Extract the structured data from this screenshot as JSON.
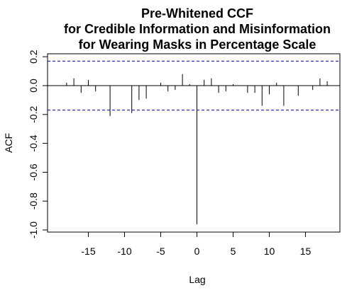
{
  "chart_data": {
    "type": "bar",
    "title_lines": [
      "Pre-Whitened CCF",
      "for Credible Information and Misinformation",
      "for Wearing Masks in Percentage Scale"
    ],
    "xlabel": "Lag",
    "ylabel": "ACF",
    "xlim": [
      -19,
      19
    ],
    "ylim": [
      -1.0,
      0.2
    ],
    "x_ticks": [
      -15,
      -10,
      -5,
      0,
      5,
      10,
      15
    ],
    "x_tick_labels": [
      "-15",
      "-10",
      "-5",
      "0",
      "5",
      "10",
      "15"
    ],
    "y_ticks": [
      -1.0,
      -0.8,
      -0.6,
      -0.4,
      -0.2,
      0.0,
      0.2
    ],
    "y_tick_labels": [
      "-1.0",
      "-0.8",
      "-0.6",
      "-0.4",
      "-0.2",
      "0.0",
      "0.2"
    ],
    "confidence_bound": 0.17,
    "lags": [
      -18,
      -17,
      -16,
      -15,
      -14,
      -13,
      -12,
      -11,
      -10,
      -9,
      -8,
      -7,
      -6,
      -5,
      -4,
      -3,
      -2,
      -1,
      0,
      1,
      2,
      3,
      4,
      5,
      6,
      7,
      8,
      9,
      10,
      11,
      12,
      13,
      14,
      15,
      16,
      17,
      18
    ],
    "values": [
      0.02,
      0.05,
      -0.05,
      0.04,
      -0.04,
      0.0,
      -0.21,
      0.0,
      0.0,
      -0.19,
      -0.1,
      -0.09,
      0.0,
      0.02,
      -0.04,
      -0.03,
      0.08,
      0.01,
      -0.96,
      0.04,
      0.05,
      -0.05,
      -0.04,
      0.01,
      0.0,
      -0.05,
      -0.05,
      -0.14,
      -0.06,
      0.02,
      -0.14,
      0.0,
      -0.07,
      0.0,
      -0.03,
      0.05,
      0.03
    ],
    "colors": {
      "bars": "#000000",
      "bounds": "#0000cc",
      "zero_line": "#000000"
    }
  }
}
